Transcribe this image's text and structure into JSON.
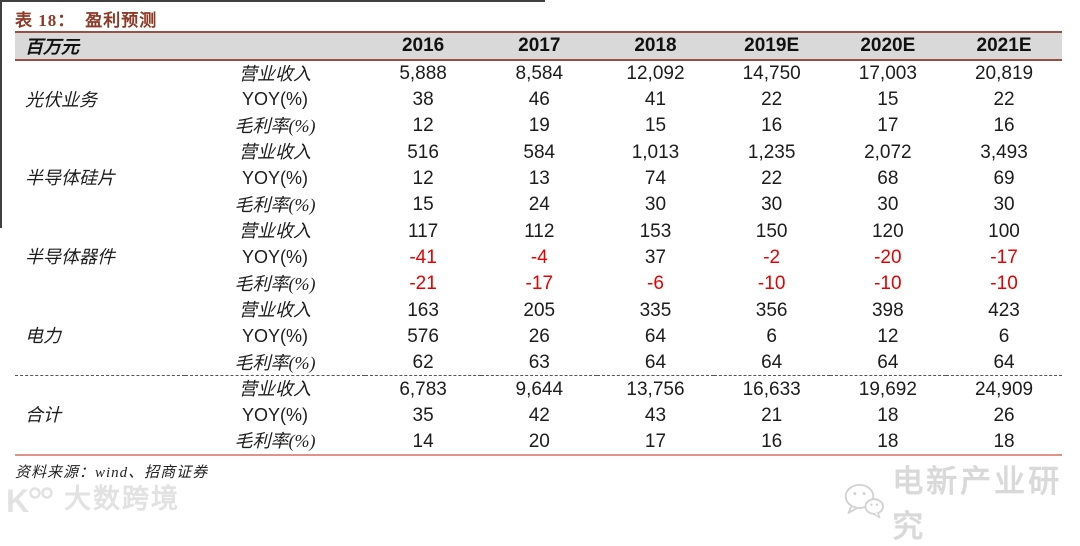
{
  "page": {
    "title_label": "表 18：",
    "title": "盈利预测",
    "source": "资料来源：wind、招商证券"
  },
  "table": {
    "unit_header": "百万元",
    "year_headers": [
      "2016",
      "2017",
      "2018",
      "2019E",
      "2020E",
      "2021E"
    ],
    "groups": [
      {
        "name": "光伏业务",
        "rows": [
          {
            "metric": "营业收入",
            "values": [
              "5,888",
              "8,584",
              "12,092",
              "14,750",
              "17,003",
              "20,819"
            ]
          },
          {
            "metric": "YOY(%)",
            "values": [
              "38",
              "46",
              "41",
              "22",
              "15",
              "22"
            ]
          },
          {
            "metric": "毛利率(%)",
            "values": [
              "12",
              "19",
              "15",
              "16",
              "17",
              "16"
            ]
          }
        ]
      },
      {
        "name": "半导体硅片",
        "rows": [
          {
            "metric": "营业收入",
            "values": [
              "516",
              "584",
              "1,013",
              "1,235",
              "2,072",
              "3,493"
            ]
          },
          {
            "metric": "YOY(%)",
            "values": [
              "12",
              "13",
              "74",
              "22",
              "68",
              "69"
            ]
          },
          {
            "metric": "毛利率(%)",
            "values": [
              "15",
              "24",
              "30",
              "30",
              "30",
              "30"
            ]
          }
        ]
      },
      {
        "name": "半导体器件",
        "rows": [
          {
            "metric": "营业收入",
            "values": [
              "117",
              "112",
              "153",
              "150",
              "120",
              "100"
            ]
          },
          {
            "metric": "YOY(%)",
            "values": [
              "-41",
              "-4",
              "37",
              "-2",
              "-20",
              "-17"
            ]
          },
          {
            "metric": "毛利率(%)",
            "values": [
              "-21",
              "-17",
              "-6",
              "-10",
              "-10",
              "-10"
            ]
          }
        ]
      },
      {
        "name": "电力",
        "rows": [
          {
            "metric": "营业收入",
            "values": [
              "163",
              "205",
              "335",
              "356",
              "398",
              "423"
            ]
          },
          {
            "metric": "YOY(%)",
            "values": [
              "576",
              "26",
              "64",
              "6",
              "12",
              "6"
            ]
          },
          {
            "metric": "毛利率(%)",
            "values": [
              "62",
              "63",
              "64",
              "64",
              "64",
              "64"
            ]
          }
        ]
      },
      {
        "name": "合计",
        "divider_before": true,
        "rows": [
          {
            "metric": "营业收入",
            "values": [
              "6,783",
              "9,644",
              "13,756",
              "16,633",
              "19,692",
              "24,909"
            ]
          },
          {
            "metric": "YOY(%)",
            "values": [
              "35",
              "42",
              "43",
              "21",
              "18",
              "26"
            ]
          },
          {
            "metric": "毛利率(%)",
            "values": [
              "14",
              "20",
              "17",
              "16",
              "18",
              "18"
            ]
          }
        ]
      }
    ]
  },
  "watermarks": {
    "left_logo_letter": "K",
    "left_text": "大数跨境",
    "right_text": "电新产业研究"
  },
  "colors": {
    "title": "#8e3a26",
    "header_border": "#9a4f46",
    "header_bg": "#d9d9d9",
    "bottom_border": "#dd938a",
    "negative": "#e60000"
  }
}
